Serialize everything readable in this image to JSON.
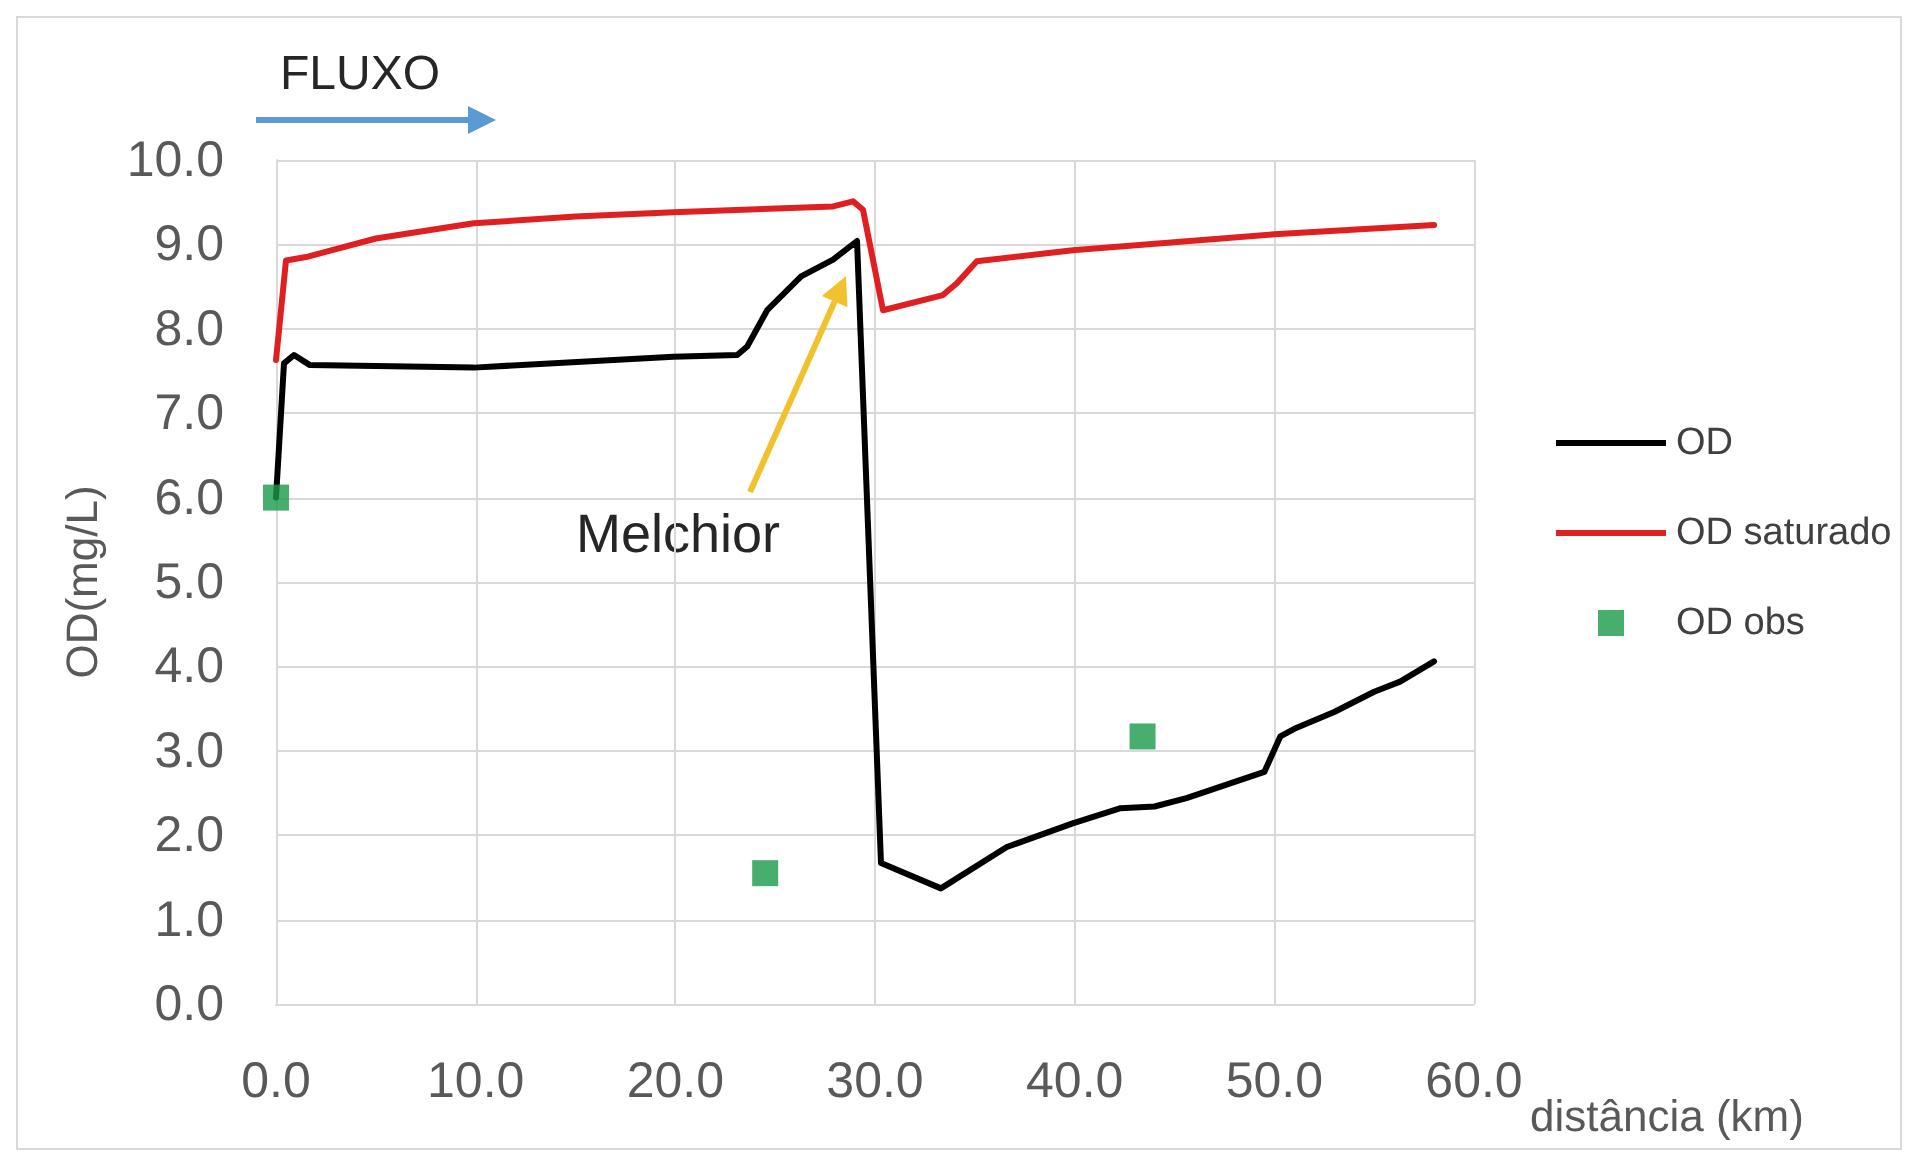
{
  "chart_data": {
    "type": "line",
    "xlabel": "distância (km)",
    "ylabel": "OD(mg/L)",
    "annotations": [
      "FLUXO",
      "Melchior"
    ],
    "xlim": [
      0,
      60
    ],
    "xticks": [
      {
        "value": 0,
        "label": "0.0"
      },
      {
        "value": 10,
        "label": "10.0"
      },
      {
        "value": 20,
        "label": "20.0"
      },
      {
        "value": 30,
        "label": "30.0"
      },
      {
        "value": 40,
        "label": "40.0"
      },
      {
        "value": 50,
        "label": "50.0"
      },
      {
        "value": 60,
        "label": "60.0"
      }
    ],
    "ylim": [
      0,
      10
    ],
    "yticks": [
      {
        "value": 0,
        "label": "0.0"
      },
      {
        "value": 1,
        "label": "1.0"
      },
      {
        "value": 2,
        "label": "2.0"
      },
      {
        "value": 3,
        "label": "3.0"
      },
      {
        "value": 4,
        "label": "4.0"
      },
      {
        "value": 5,
        "label": "5.0"
      },
      {
        "value": 6,
        "label": "6.0"
      },
      {
        "value": 7,
        "label": "7.0"
      },
      {
        "value": 8,
        "label": "8.0"
      },
      {
        "value": 9,
        "label": "9.0"
      },
      {
        "value": 10,
        "label": "10.0"
      }
    ],
    "grid": true,
    "legend": "right",
    "series": [
      {
        "name": "OD",
        "type": "line",
        "color": "#000000",
        "marker": "none",
        "x": [
          0,
          0.4,
          0.9,
          1.7,
          9.9,
          19.9,
          23.1,
          23.6,
          24.6,
          26.3,
          27.9,
          29.1,
          30.3,
          33.3,
          36.6,
          39.9,
          42.3,
          44.0,
          45.6,
          49.5,
          50.3,
          51.0,
          53.0,
          55.0,
          56.3,
          58.0
        ],
        "values": [
          6.0,
          7.59,
          7.69,
          7.57,
          7.54,
          7.67,
          7.69,
          7.79,
          8.22,
          8.62,
          8.82,
          9.04,
          1.67,
          1.37,
          1.86,
          2.14,
          2.32,
          2.34,
          2.44,
          2.75,
          3.17,
          3.26,
          3.46,
          3.7,
          3.82,
          4.06
        ]
      },
      {
        "name": "OD saturado",
        "type": "line",
        "color": "#e02020",
        "marker": "none",
        "x": [
          0,
          0.5,
          1.5,
          5.0,
          9.9,
          15.0,
          19.9,
          27.9,
          28.9,
          29.4,
          30.4,
          33.4,
          34.1,
          35.1,
          39.9,
          50.0,
          58.0
        ],
        "values": [
          7.63,
          8.81,
          8.85,
          9.07,
          9.25,
          9.33,
          9.38,
          9.45,
          9.51,
          9.41,
          8.22,
          8.4,
          8.54,
          8.8,
          8.93,
          9.12,
          9.23
        ]
      },
      {
        "name": "OD obs",
        "type": "scatter",
        "color": "#1a9a4a",
        "marker": "square",
        "x": [
          0,
          24.5,
          43.4
        ],
        "values": [
          6.0,
          1.55,
          3.17
        ]
      }
    ]
  }
}
